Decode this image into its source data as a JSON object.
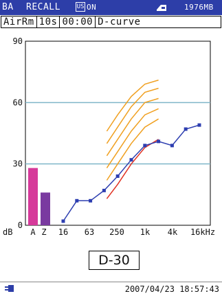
{
  "topbar": {
    "mode": "BA",
    "screen": "RECALL",
    "hold_badge": "US",
    "hold_state": "ON",
    "memory": "1976MB"
  },
  "status": {
    "location": "AirRm",
    "interval": "10s",
    "time": "00:00",
    "curve_type": "D-curve"
  },
  "footer": {
    "datetime": "2007/04/23 18:57:43"
  },
  "curve_label": "D-30",
  "colors": {
    "accent": "#2d3ea8",
    "bar_A": "#d63a9a",
    "bar_Z": "#7a3aa0",
    "data_line": "#2d3eb0",
    "reference_curve": "#e03020",
    "family_curves": "#f0a020",
    "gridline": "#7fb6c9"
  },
  "chart_data": {
    "type": "line",
    "ylim": [
      0,
      90
    ],
    "y_ticks": [
      "0",
      "30",
      "60",
      "90"
    ],
    "y_unit": "dB",
    "x_tick_labels": [
      "A",
      "Z",
      "16",
      "63",
      "250",
      "1k",
      "4k",
      "16kHz"
    ],
    "overall_bars": [
      {
        "name": "A",
        "value": 28
      },
      {
        "name": "Z",
        "value": 16
      }
    ],
    "band_x": [
      0,
      1,
      2,
      3,
      4,
      5,
      6,
      7,
      8,
      9,
      10
    ],
    "series": [
      {
        "values": [
          2,
          12,
          12,
          17,
          24,
          32,
          39,
          41,
          39,
          47,
          49
        ]
      }
    ],
    "reference_curve": {
      "x": [
        3.2,
        4,
        5,
        6,
        7
      ],
      "values": [
        13,
        20,
        30,
        38,
        42
      ]
    },
    "curve_family": [
      [
        22,
        30,
        40,
        48,
        52
      ],
      [
        28,
        36,
        46,
        54,
        57
      ],
      [
        34,
        42,
        52,
        60,
        62
      ],
      [
        40,
        48,
        58,
        65,
        67
      ],
      [
        46,
        54,
        63,
        69,
        71
      ]
    ],
    "curve_family_x": [
      3.2,
      4,
      5,
      6,
      7
    ],
    "grid": true
  }
}
